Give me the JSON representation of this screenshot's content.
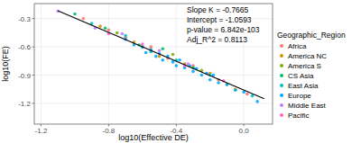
{
  "chart_data": {
    "type": "scatter",
    "x_label": "log10(Effective DE)",
    "y_label": "log10(FE)",
    "legend_title": "Geographic_Region",
    "legend": "right",
    "grid": true,
    "xlim": [
      -1.24,
      0.17
    ],
    "ylim": [
      -1.42,
      -0.14
    ],
    "xticks": [
      -1.2,
      -0.8,
      -0.4,
      {
        "value": 0,
        "label": "0.0"
      }
    ],
    "yticks": [
      -0.3,
      -0.6,
      -0.9,
      -1.2
    ],
    "annotations": [
      "Slope K = -0.7665",
      "Intercept = -1.0593",
      "p-value = 6.842e-103",
      "Adj_R^2 = 0.8113"
    ],
    "fit": {
      "slope": -0.7665,
      "intercept": -1.0593,
      "x_range": [
        -1.1,
        0.12
      ],
      "color": "#000000"
    },
    "series": [
      {
        "name": "Africa",
        "color": "#F8766D",
        "x": [
          -0.95,
          -0.8,
          -0.7,
          -0.55,
          -0.45,
          -0.3,
          -0.15,
          0.02
        ],
        "y": [
          -0.3,
          -0.42,
          -0.5,
          -0.6,
          -0.72,
          -0.8,
          -0.95,
          -1.1
        ]
      },
      {
        "name": "America NC",
        "color": "#CD9600",
        "x": [
          -0.85,
          -0.65,
          -0.5,
          -0.35,
          -0.2,
          -0.05
        ],
        "y": [
          -0.38,
          -0.55,
          -0.7,
          -0.78,
          -0.88,
          -1.05
        ]
      },
      {
        "name": "America S",
        "color": "#7CAE00",
        "x": [
          -0.75,
          -0.6,
          -0.42,
          -0.25,
          -0.1
        ],
        "y": [
          -0.45,
          -0.6,
          -0.68,
          -0.85,
          -1.0
        ]
      },
      {
        "name": "CS Asia",
        "color": "#00BE67",
        "x": [
          -1.0,
          -0.82,
          -0.62,
          -0.48,
          -0.3
        ],
        "y": [
          -0.25,
          -0.4,
          -0.58,
          -0.62,
          -0.82
        ]
      },
      {
        "name": "East Asia",
        "color": "#00BFC4",
        "x": [
          -0.9,
          -0.7,
          -0.55,
          -0.4,
          -0.2,
          0.05
        ],
        "y": [
          -0.35,
          -0.48,
          -0.65,
          -0.74,
          -0.9,
          -1.12
        ]
      },
      {
        "name": "Europe",
        "color": "#00A9FF",
        "x": [
          -0.7,
          -0.65,
          -0.6,
          -0.58,
          -0.55,
          -0.52,
          -0.5,
          -0.48,
          -0.45,
          -0.42,
          -0.4,
          -0.38,
          -0.35,
          -0.32,
          -0.3,
          -0.28,
          -0.25,
          -0.22,
          -0.2,
          -0.18,
          -0.15,
          -0.1,
          -0.05,
          0.0,
          0.08
        ],
        "y": [
          -0.52,
          -0.58,
          -0.6,
          -0.66,
          -0.63,
          -0.7,
          -0.67,
          -0.74,
          -0.7,
          -0.76,
          -0.8,
          -0.74,
          -0.82,
          -0.8,
          -0.86,
          -0.83,
          -0.9,
          -0.88,
          -0.95,
          -0.9,
          -0.98,
          -1.0,
          -1.06,
          -1.08,
          -1.18
        ]
      },
      {
        "name": "Middle East",
        "color": "#C77CFF",
        "x": [
          -1.1,
          -0.88,
          -0.72,
          -0.5,
          -0.33
        ],
        "y": [
          -0.22,
          -0.4,
          -0.46,
          -0.64,
          -0.78
        ]
      },
      {
        "name": "Pacific",
        "color": "#FF61CC",
        "x": [
          -0.8,
          -0.6,
          -0.35,
          -0.12
        ],
        "y": [
          -0.46,
          -0.57,
          -0.8,
          -0.96
        ]
      }
    ]
  }
}
